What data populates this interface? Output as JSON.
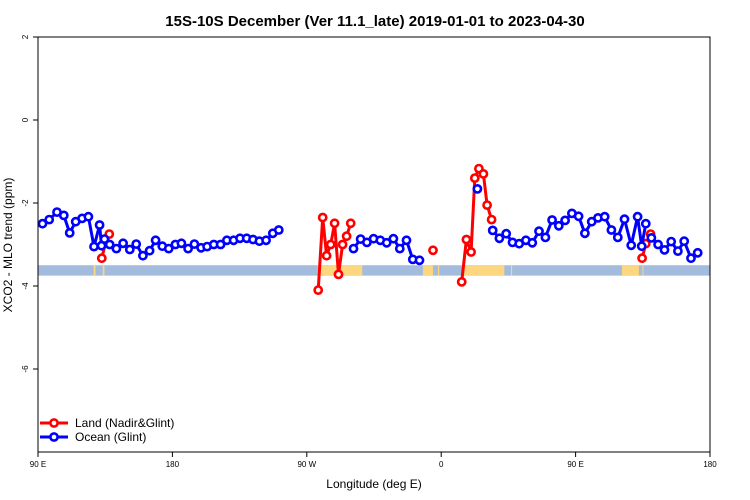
{
  "chart_data": {
    "type": "line",
    "title": "15S-10S December (Ver 11.1_late)   2019-01-01 to 2023-04-30",
    "xlabel": "Longitude (deg E)",
    "ylabel": "XCO2 - MLO trend (ppm)",
    "xlim": [
      90,
      450
    ],
    "ylim": [
      -8,
      2
    ],
    "x_ticks": [
      {
        "value": 90,
        "label": "90 E"
      },
      {
        "value": 162,
        "label": "180"
      },
      {
        "value": 234,
        "label": "90 W"
      },
      {
        "value": 306,
        "label": "0"
      },
      {
        "value": 378,
        "label": "90 E"
      },
      {
        "value": 450,
        "label": "180"
      }
    ],
    "y_ticks": [
      {
        "value": 2,
        "label": "2"
      },
      {
        "value": 0,
        "label": "0"
      },
      {
        "value": -2,
        "label": "-2"
      },
      {
        "value": -4,
        "label": "-4"
      },
      {
        "value": -6,
        "label": "-6"
      }
    ],
    "band": {
      "ymin": -3.75,
      "ymax": -3.5,
      "color": "#a3bbdc",
      "land_color": "#fcd77f"
    },
    "land_spans": [
      [
        119.8,
        120.8
      ],
      [
        124.7,
        125.6
      ],
      [
        239.8,
        263.7
      ],
      [
        296.2,
        301.6
      ],
      [
        304.3,
        304.9
      ],
      [
        318.2,
        339.8
      ],
      [
        343.4,
        344.0
      ],
      [
        402.8,
        411.9
      ],
      [
        413.8,
        414.3
      ]
    ],
    "legend": {
      "position": "bottom-left",
      "entries": [
        {
          "label": "Land (Nadir&Glint)",
          "color": "#ff0000"
        },
        {
          "label": "Ocean (Glint)",
          "color": "#0000ff"
        }
      ]
    },
    "series": [
      {
        "name": "Land (Nadir&Glint)",
        "color": "#ff0000",
        "segments": [
          [
            [
              124.2,
              -3.33
            ],
            [
              126.2,
              -2.95
            ],
            [
              128.2,
              -2.75
            ]
          ],
          [
            [
              240.1,
              -4.1
            ],
            [
              242.5,
              -2.35
            ],
            [
              244.6,
              -3.27
            ],
            [
              246.8,
              -3.0
            ],
            [
              248.9,
              -2.49
            ],
            [
              251.0,
              -3.72
            ],
            [
              253.2,
              -3.0
            ],
            [
              255.3,
              -2.8
            ],
            [
              257.5,
              -2.49
            ]
          ],
          [
            [
              301.6,
              -3.14
            ]
          ],
          [
            [
              317.0,
              -3.9
            ],
            [
              319.5,
              -2.88
            ],
            [
              322.0,
              -3.18
            ],
            [
              324.0,
              -1.4
            ],
            [
              326.2,
              -1.17
            ],
            [
              328.6,
              -1.3
            ],
            [
              330.6,
              -2.05
            ],
            [
              333.0,
              -2.4
            ]
          ],
          [
            [
              413.6,
              -3.33
            ],
            [
              415.6,
              -2.98
            ],
            [
              418.2,
              -2.75
            ]
          ]
        ]
      },
      {
        "name": "Ocean (Glint)",
        "color": "#0000ff",
        "segments": [
          [
            [
              92.4,
              -2.5
            ],
            [
              96.0,
              -2.4
            ],
            [
              100.2,
              -2.22
            ],
            [
              103.8,
              -2.3
            ],
            [
              107.0,
              -2.72
            ],
            [
              110.2,
              -2.45
            ],
            [
              113.6,
              -2.37
            ],
            [
              117.0,
              -2.33
            ],
            [
              120.0,
              -3.05
            ],
            [
              123.0,
              -2.53
            ],
            [
              124.0,
              -3.03
            ]
          ],
          [
            [
              125.6,
              -2.87
            ],
            [
              128.4,
              -3.0
            ],
            [
              132.0,
              -3.1
            ],
            [
              135.6,
              -2.97
            ],
            [
              139.2,
              -3.12
            ],
            [
              142.6,
              -2.99
            ],
            [
              146.2,
              -3.27
            ],
            [
              149.8,
              -3.15
            ],
            [
              153.0,
              -2.9
            ],
            [
              156.6,
              -3.04
            ],
            [
              160.0,
              -3.1
            ],
            [
              163.6,
              -3.0
            ],
            [
              166.8,
              -2.97
            ],
            [
              170.4,
              -3.1
            ],
            [
              173.8,
              -2.99
            ],
            [
              177.4,
              -3.08
            ],
            [
              180.6,
              -3.05
            ],
            [
              184.2,
              -3.0
            ],
            [
              187.8,
              -3.0
            ],
            [
              191.2,
              -2.9
            ],
            [
              194.8,
              -2.9
            ],
            [
              198.2,
              -2.85
            ],
            [
              201.8,
              -2.85
            ],
            [
              205.2,
              -2.88
            ],
            [
              208.6,
              -2.92
            ],
            [
              212.2,
              -2.9
            ],
            [
              215.8,
              -2.73
            ],
            [
              219.0,
              -2.65
            ]
          ],
          [
            [
              259.0,
              -3.1
            ],
            [
              262.8,
              -2.87
            ],
            [
              266.2,
              -2.95
            ],
            [
              269.8,
              -2.86
            ],
            [
              273.4,
              -2.9
            ],
            [
              276.8,
              -2.96
            ],
            [
              280.4,
              -2.86
            ],
            [
              283.8,
              -3.1
            ],
            [
              287.4,
              -2.9
            ],
            [
              290.8,
              -3.36
            ],
            [
              294.4,
              -3.38
            ]
          ],
          [
            [
              325.4,
              -1.66
            ]
          ],
          [
            [
              333.6,
              -2.66
            ],
            [
              337.2,
              -2.85
            ],
            [
              340.8,
              -2.74
            ],
            [
              344.2,
              -2.95
            ],
            [
              347.8,
              -2.98
            ],
            [
              351.4,
              -2.9
            ],
            [
              354.8,
              -2.96
            ],
            [
              358.4,
              -2.68
            ],
            [
              361.8,
              -2.83
            ],
            [
              365.4,
              -2.41
            ],
            [
              369.0,
              -2.55
            ],
            [
              372.4,
              -2.42
            ],
            [
              376.0,
              -2.25
            ],
            [
              379.6,
              -2.32
            ],
            [
              383.0,
              -2.73
            ],
            [
              386.6,
              -2.45
            ],
            [
              390.0,
              -2.36
            ],
            [
              393.6,
              -2.33
            ],
            [
              397.2,
              -2.65
            ],
            [
              400.6,
              -2.83
            ],
            [
              404.2,
              -2.39
            ],
            [
              407.8,
              -3.02
            ],
            [
              411.2,
              -2.33
            ],
            [
              413.4,
              -3.04
            ],
            [
              415.6,
              -2.5
            ]
          ],
          [
            [
              418.6,
              -2.84
            ],
            [
              422.2,
              -3.0
            ],
            [
              425.6,
              -3.13
            ],
            [
              429.2,
              -2.93
            ],
            [
              432.8,
              -3.16
            ],
            [
              436.2,
              -2.92
            ],
            [
              439.8,
              -3.33
            ],
            [
              443.4,
              -3.2
            ]
          ]
        ]
      }
    ]
  }
}
